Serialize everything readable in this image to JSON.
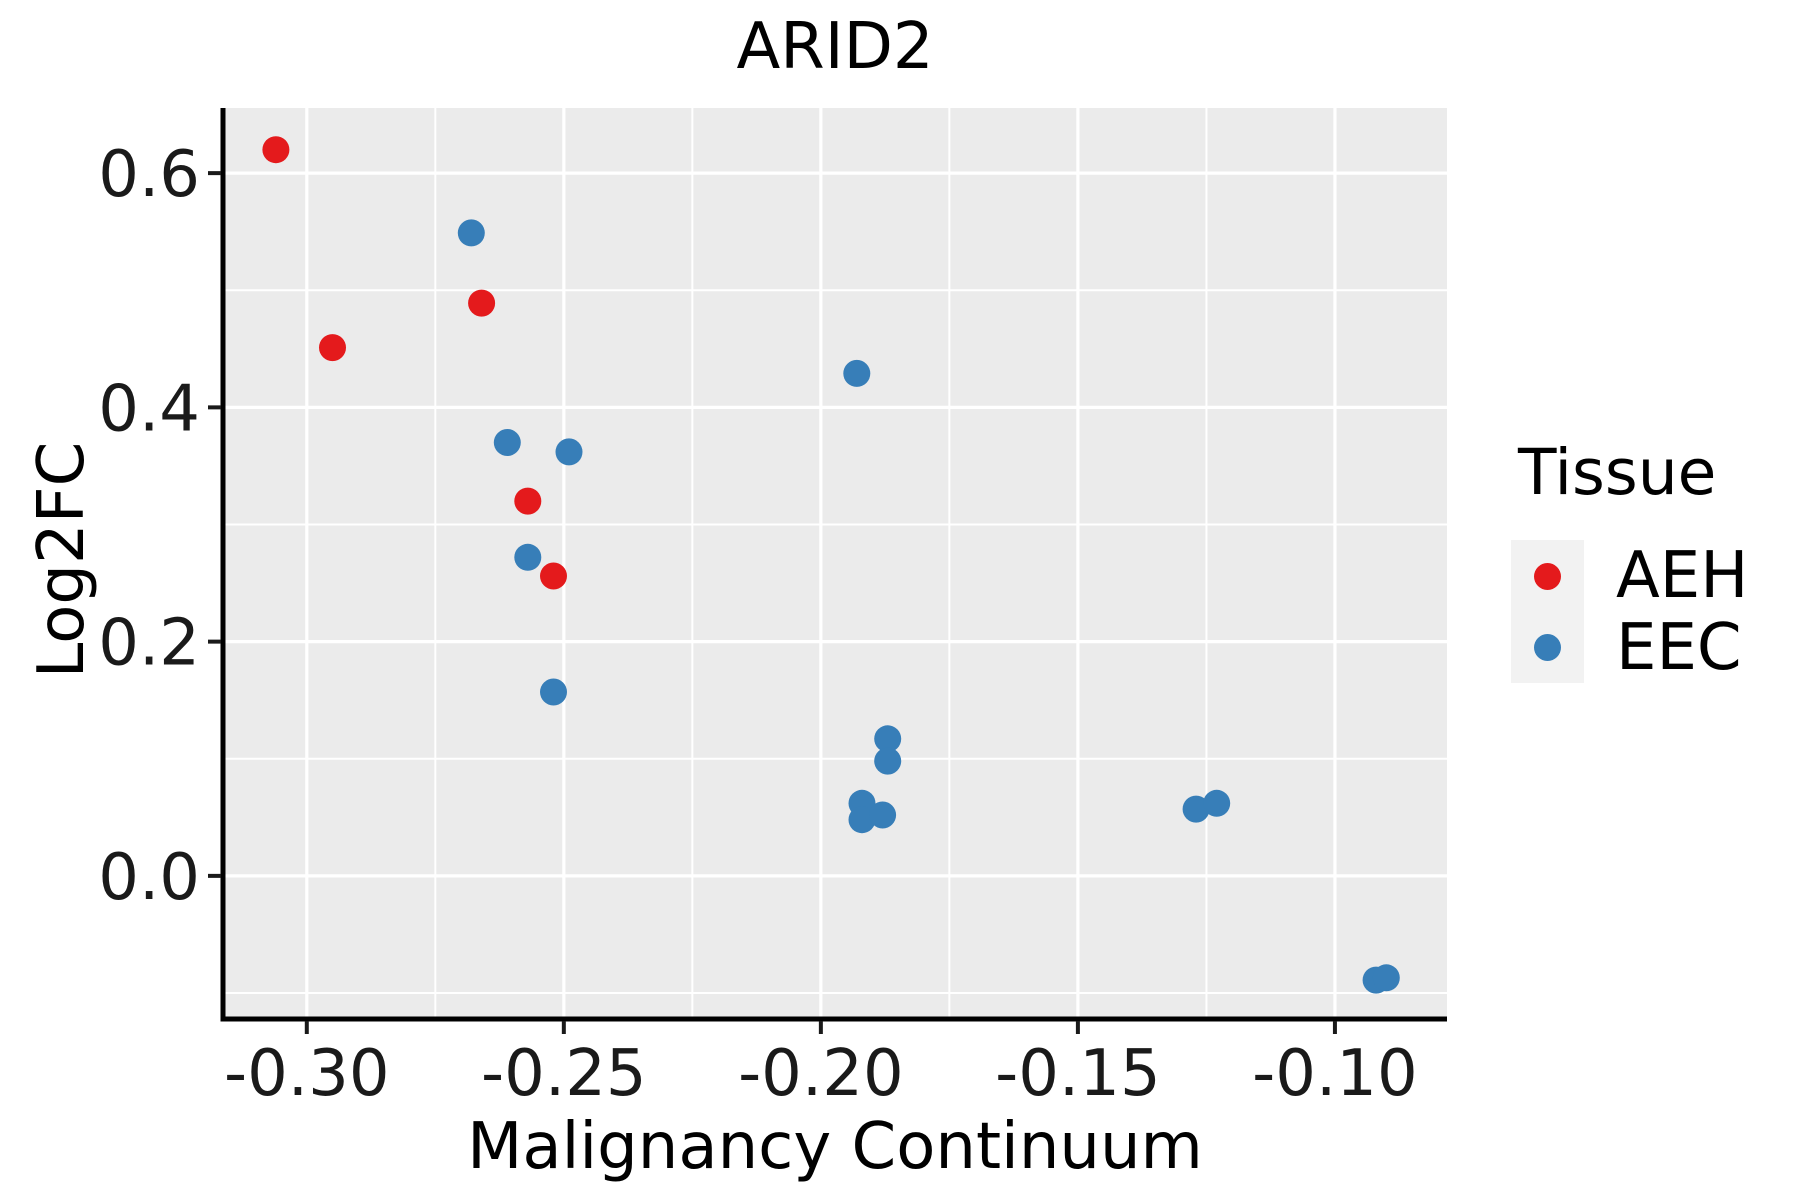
{
  "title": "ARID2",
  "colors": {
    "panel_bg": "#ebebeb",
    "grid": "#ffffff",
    "axis_line": "#000000",
    "tick": "#1a1a1a",
    "text": "#1a1a1a",
    "legend_key_bg": "#f2f2f2",
    "aeh": "#e41a1c",
    "eec": "#377eb8"
  },
  "legend": {
    "title": "Tissue",
    "items": [
      {
        "label": "AEH",
        "color": "#e41a1c"
      },
      {
        "label": "EEC",
        "color": "#377eb8"
      }
    ]
  },
  "chart_data": {
    "type": "scatter",
    "title": "ARID2",
    "xlabel": "Malignancy Continuum",
    "ylabel": "Log2FC",
    "xlim": [
      -0.3163,
      -0.0782
    ],
    "ylim": [
      -0.1222,
      0.6556
    ],
    "x_major_ticks": [
      -0.3,
      -0.25,
      -0.2,
      -0.15,
      -0.1
    ],
    "x_tick_labels": [
      "-0.30",
      "-0.25",
      "-0.20",
      "-0.15",
      "-0.10"
    ],
    "x_minor_ticks": [
      -0.275,
      -0.225,
      -0.175,
      -0.125
    ],
    "y_major_ticks": [
      0.6,
      0.4,
      0.2,
      0.0
    ],
    "y_tick_labels": [
      "0.6",
      "0.4",
      "0.2",
      "0.0"
    ],
    "y_minor_ticks": [
      0.5,
      0.3,
      0.1,
      -0.1
    ],
    "grid": true,
    "legend_position": "right",
    "marker_radius_px": 13.5,
    "series": [
      {
        "name": "AEH",
        "color": "#e41a1c",
        "points": [
          [
            -0.306,
            0.62
          ],
          [
            -0.295,
            0.451
          ],
          [
            -0.266,
            0.489
          ],
          [
            -0.257,
            0.32
          ],
          [
            -0.252,
            0.256
          ]
        ]
      },
      {
        "name": "EEC",
        "color": "#377eb8",
        "points": [
          [
            -0.268,
            0.549
          ],
          [
            -0.261,
            0.37
          ],
          [
            -0.249,
            0.362
          ],
          [
            -0.257,
            0.272
          ],
          [
            -0.252,
            0.157
          ],
          [
            -0.193,
            0.429
          ],
          [
            -0.187,
            0.117
          ],
          [
            -0.187,
            0.098
          ],
          [
            -0.192,
            0.062
          ],
          [
            -0.192,
            0.048
          ],
          [
            -0.188,
            0.052
          ],
          [
            -0.127,
            0.057
          ],
          [
            -0.123,
            0.062
          ],
          [
            -0.092,
            -0.089
          ],
          [
            -0.09,
            -0.087
          ]
        ]
      }
    ]
  }
}
